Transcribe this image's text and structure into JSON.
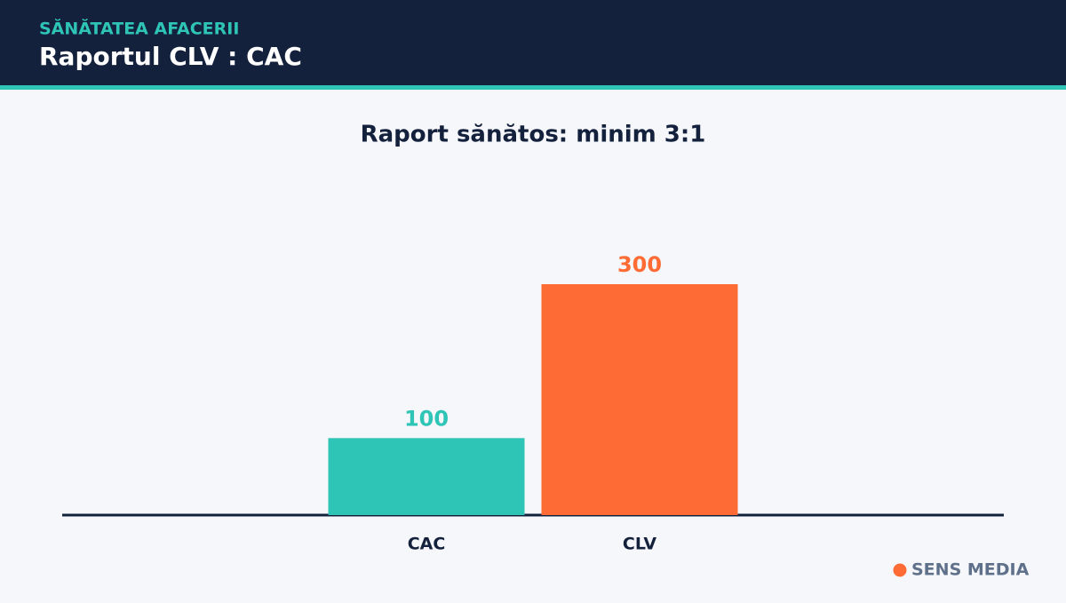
{
  "header": {
    "kicker": "SĂNĂTATEA AFACERII",
    "title": "Raportul CLV : CAC"
  },
  "chart_data": {
    "type": "bar",
    "title": "Raport sănătos: minim 3:1",
    "categories": [
      "CAC",
      "CLV"
    ],
    "values": [
      100,
      300
    ],
    "colors": [
      "#2ec4b6",
      "#ff6b35"
    ],
    "ylim": [
      0,
      450
    ]
  },
  "brand": "SENS MEDIA"
}
